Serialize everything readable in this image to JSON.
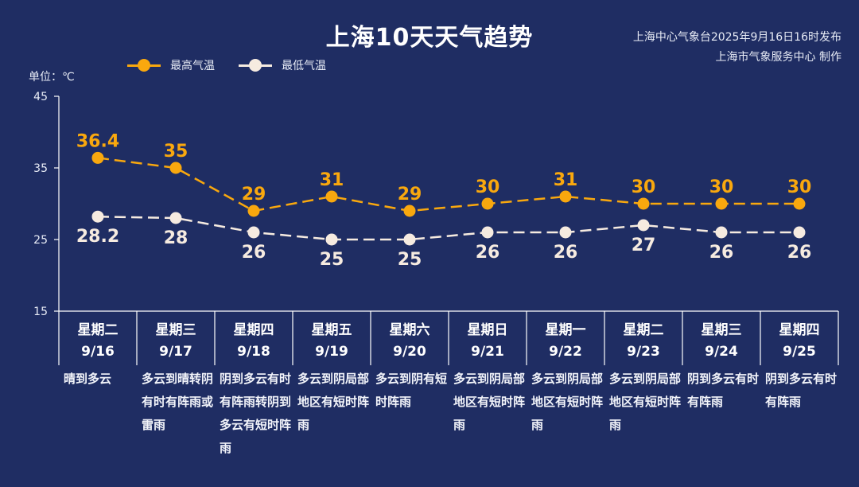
{
  "title": "上海10天天气趋势",
  "issuer": {
    "line1": "上海中心气象台2025年9月16日16时发布",
    "line2": "上海市气象服务中心 制作"
  },
  "unit_label": "单位：℃",
  "colors": {
    "high": "#f9a80e",
    "low": "#f6ebe0",
    "background": "#1f2d63",
    "axis": "#ffffff"
  },
  "legend": {
    "high_label": "最高气温",
    "low_label": "最低气温"
  },
  "days": [
    {
      "weekday": "星期二",
      "date": "9/16",
      "weather": "晴到多云"
    },
    {
      "weekday": "星期三",
      "date": "9/17",
      "weather": "多云到晴转阴有时有阵雨或雷雨"
    },
    {
      "weekday": "星期四",
      "date": "9/18",
      "weather": "阴到多云有时有阵雨转阴到多云有短时阵雨"
    },
    {
      "weekday": "星期五",
      "date": "9/19",
      "weather": "多云到阴局部地区有短时阵雨"
    },
    {
      "weekday": "星期六",
      "date": "9/20",
      "weather": "多云到阴有短时阵雨"
    },
    {
      "weekday": "星期日",
      "date": "9/21",
      "weather": "多云到阴局部地区有短时阵雨"
    },
    {
      "weekday": "星期一",
      "date": "9/22",
      "weather": "多云到阴局部地区有短时阵雨"
    },
    {
      "weekday": "星期二",
      "date": "9/23",
      "weather": "多云到阴局部地区有短时阵雨"
    },
    {
      "weekday": "星期三",
      "date": "9/24",
      "weather": "阴到多云有时有阵雨"
    },
    {
      "weekday": "星期四",
      "date": "9/25",
      "weather": "阴到多云有时有阵雨"
    }
  ],
  "chart_data": {
    "type": "line",
    "title": "上海10天天气趋势",
    "ylabel": "单位：℃",
    "ylim": [
      15,
      45
    ],
    "yticks": [
      "15",
      "25",
      "35",
      "45"
    ],
    "categories": [
      "9/16",
      "9/17",
      "9/18",
      "9/19",
      "9/20",
      "9/21",
      "9/22",
      "9/23",
      "9/24",
      "9/25"
    ],
    "series": [
      {
        "name": "最高气温",
        "values": [
          36.4,
          35,
          29,
          31,
          29,
          30,
          31,
          30,
          30,
          30
        ],
        "labels": [
          "36.4",
          "35",
          "29",
          "31",
          "29",
          "30",
          "31",
          "30",
          "30",
          "30"
        ]
      },
      {
        "name": "最低气温",
        "values": [
          28.2,
          28,
          26,
          25,
          25,
          26,
          26,
          27,
          26,
          26
        ],
        "labels": [
          "28.2",
          "28",
          "26",
          "25",
          "25",
          "26",
          "26",
          "27",
          "26",
          "26"
        ]
      }
    ],
    "legend": "top-left",
    "grid": false
  }
}
